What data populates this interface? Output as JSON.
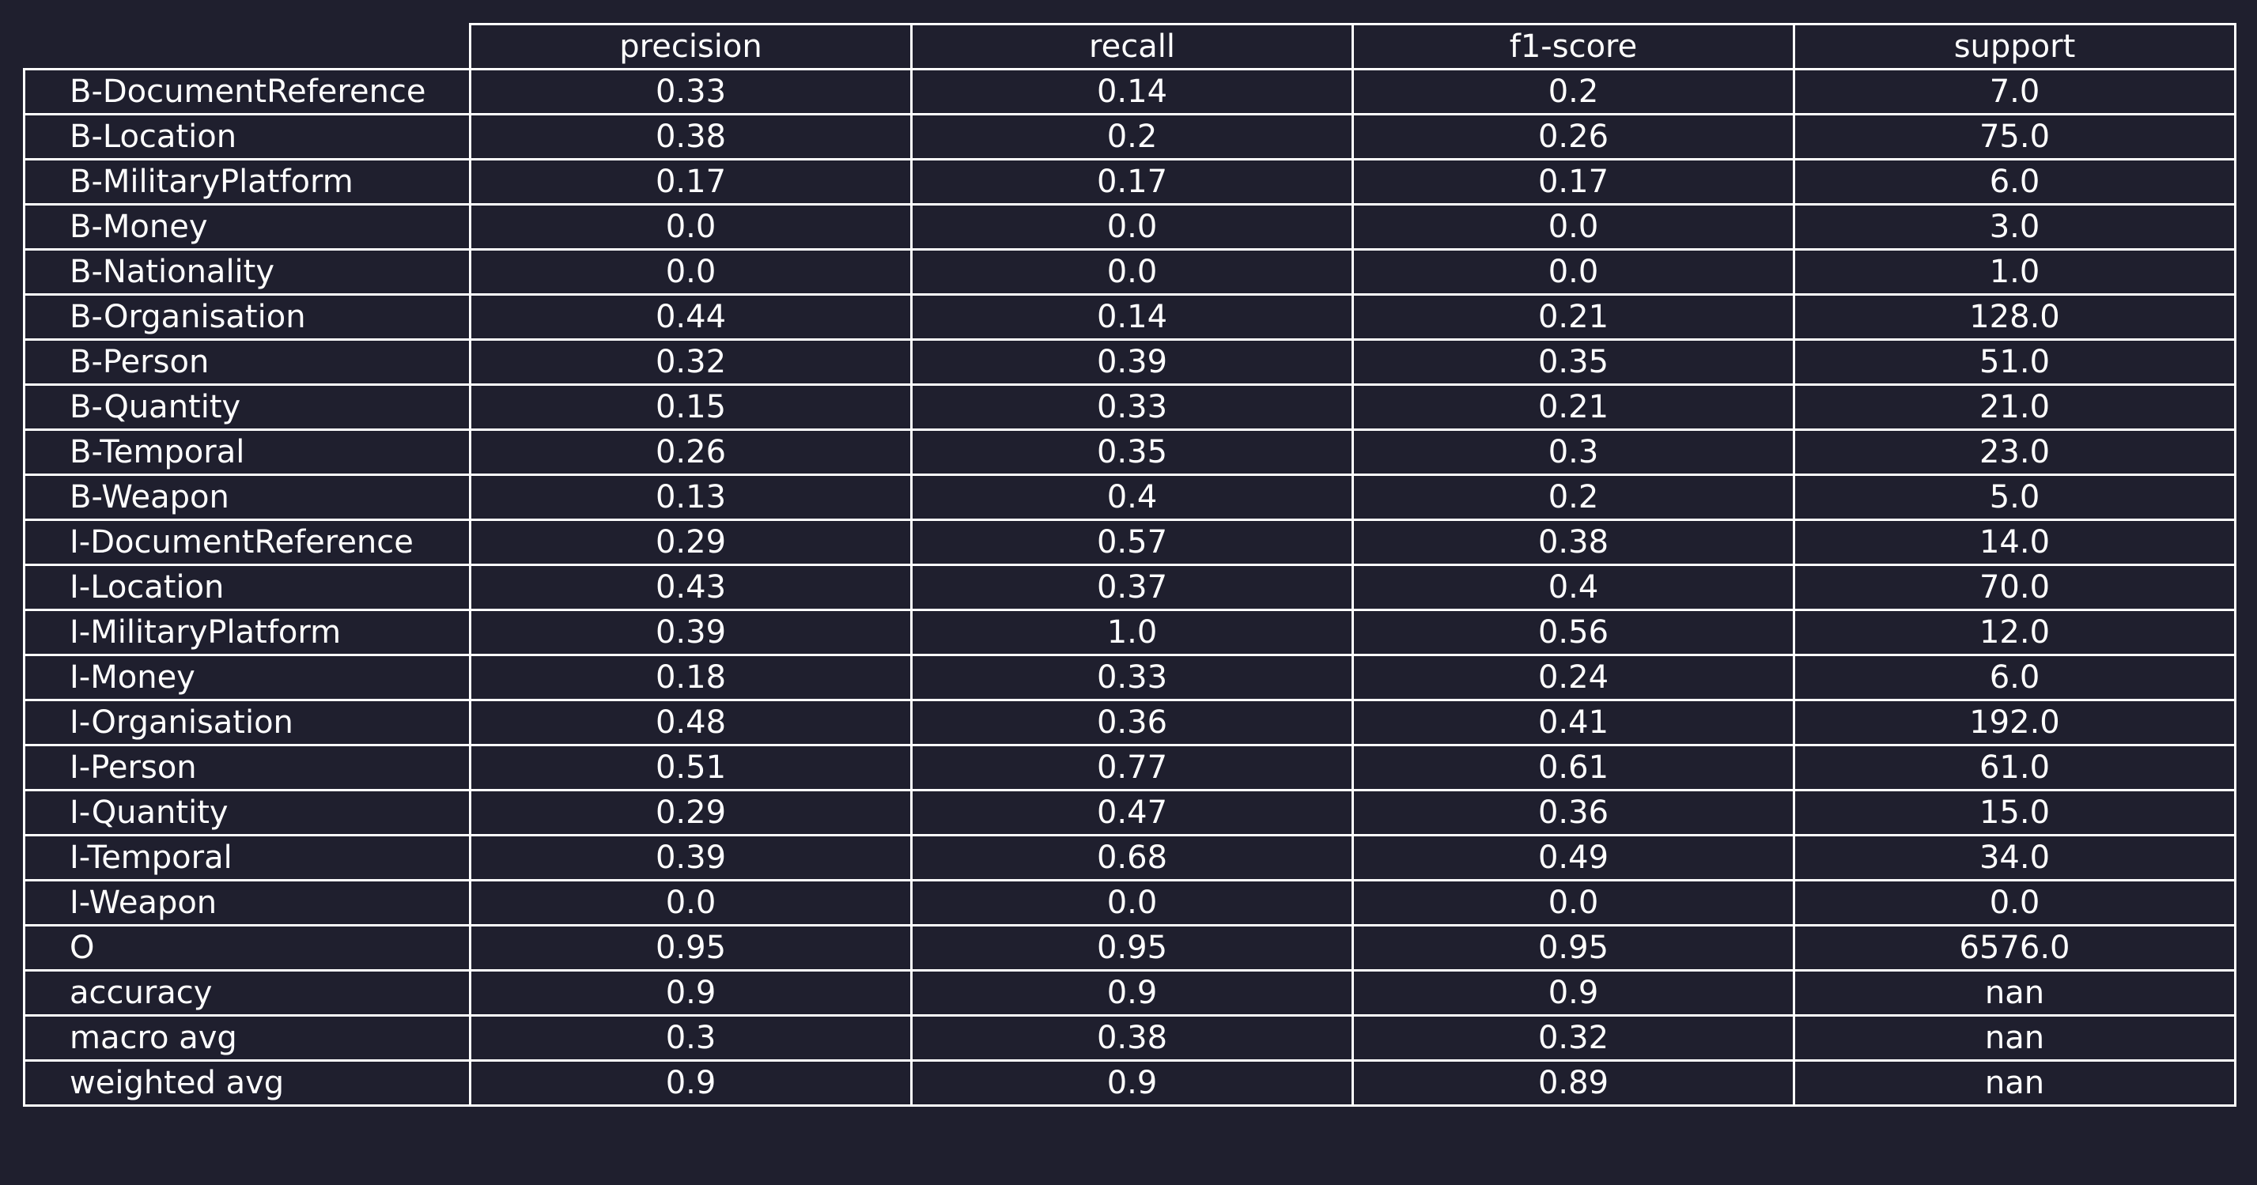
{
  "colors": {
    "background": "#1f1f2e",
    "text": "#ffffff",
    "grid": "#ffffff"
  },
  "chart_data": {
    "type": "table",
    "columns": [
      "precision",
      "recall",
      "f1-score",
      "support"
    ],
    "rows": [
      {
        "label": "B-DocumentReference",
        "values": [
          "0.33",
          "0.14",
          "0.2",
          "7.0"
        ]
      },
      {
        "label": "B-Location",
        "values": [
          "0.38",
          "0.2",
          "0.26",
          "75.0"
        ]
      },
      {
        "label": "B-MilitaryPlatform",
        "values": [
          "0.17",
          "0.17",
          "0.17",
          "6.0"
        ]
      },
      {
        "label": "B-Money",
        "values": [
          "0.0",
          "0.0",
          "0.0",
          "3.0"
        ]
      },
      {
        "label": "B-Nationality",
        "values": [
          "0.0",
          "0.0",
          "0.0",
          "1.0"
        ]
      },
      {
        "label": "B-Organisation",
        "values": [
          "0.44",
          "0.14",
          "0.21",
          "128.0"
        ]
      },
      {
        "label": "B-Person",
        "values": [
          "0.32",
          "0.39",
          "0.35",
          "51.0"
        ]
      },
      {
        "label": "B-Quantity",
        "values": [
          "0.15",
          "0.33",
          "0.21",
          "21.0"
        ]
      },
      {
        "label": "B-Temporal",
        "values": [
          "0.26",
          "0.35",
          "0.3",
          "23.0"
        ]
      },
      {
        "label": "B-Weapon",
        "values": [
          "0.13",
          "0.4",
          "0.2",
          "5.0"
        ]
      },
      {
        "label": "I-DocumentReference",
        "values": [
          "0.29",
          "0.57",
          "0.38",
          "14.0"
        ]
      },
      {
        "label": "I-Location",
        "values": [
          "0.43",
          "0.37",
          "0.4",
          "70.0"
        ]
      },
      {
        "label": "I-MilitaryPlatform",
        "values": [
          "0.39",
          "1.0",
          "0.56",
          "12.0"
        ]
      },
      {
        "label": "I-Money",
        "values": [
          "0.18",
          "0.33",
          "0.24",
          "6.0"
        ]
      },
      {
        "label": "I-Organisation",
        "values": [
          "0.48",
          "0.36",
          "0.41",
          "192.0"
        ]
      },
      {
        "label": "I-Person",
        "values": [
          "0.51",
          "0.77",
          "0.61",
          "61.0"
        ]
      },
      {
        "label": "I-Quantity",
        "values": [
          "0.29",
          "0.47",
          "0.36",
          "15.0"
        ]
      },
      {
        "label": "I-Temporal",
        "values": [
          "0.39",
          "0.68",
          "0.49",
          "34.0"
        ]
      },
      {
        "label": "I-Weapon",
        "values": [
          "0.0",
          "0.0",
          "0.0",
          "0.0"
        ]
      },
      {
        "label": "O",
        "values": [
          "0.95",
          "0.95",
          "0.95",
          "6576.0"
        ]
      },
      {
        "label": "accuracy",
        "values": [
          "0.9",
          "0.9",
          "0.9",
          "nan"
        ]
      },
      {
        "label": "macro avg",
        "values": [
          "0.3",
          "0.38",
          "0.32",
          "nan"
        ]
      },
      {
        "label": "weighted avg",
        "values": [
          "0.9",
          "0.9",
          "0.89",
          "nan"
        ]
      }
    ]
  }
}
